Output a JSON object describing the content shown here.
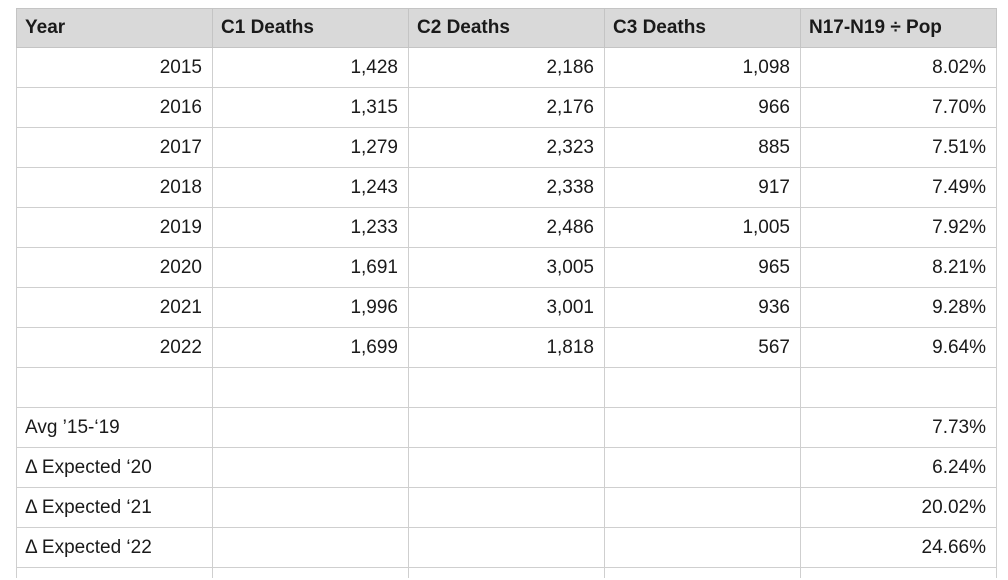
{
  "headers": [
    "Year",
    "C1 Deaths",
    "C2 Deaths",
    "C3 Deaths",
    "N17-N19 ÷ Pop"
  ],
  "rows": [
    {
      "year": "2015",
      "c1": "1,428",
      "c2": "2,186",
      "c3": "1,098",
      "ratio": "8.02%"
    },
    {
      "year": "2016",
      "c1": "1,315",
      "c2": "2,176",
      "c3": "966",
      "ratio": "7.70%"
    },
    {
      "year": "2017",
      "c1": "1,279",
      "c2": "2,323",
      "c3": "885",
      "ratio": "7.51%"
    },
    {
      "year": "2018",
      "c1": "1,243",
      "c2": "2,338",
      "c3": "917",
      "ratio": "7.49%"
    },
    {
      "year": "2019",
      "c1": "1,233",
      "c2": "2,486",
      "c3": "1,005",
      "ratio": "7.92%"
    },
    {
      "year": "2020",
      "c1": "1,691",
      "c2": "3,005",
      "c3": "965",
      "ratio": "8.21%"
    },
    {
      "year": "2021",
      "c1": "1,996",
      "c2": "3,001",
      "c3": "936",
      "ratio": "9.28%"
    },
    {
      "year": "2022",
      "c1": "1,699",
      "c2": "1,818",
      "c3": "567",
      "ratio": "9.64%"
    }
  ],
  "summary": [
    {
      "label": "Avg ’15-‘19",
      "ratio": "7.73%"
    },
    {
      "label": "Δ Expected ‘20",
      "ratio": "6.24%"
    },
    {
      "label": "Δ Expected ‘21",
      "ratio": "20.02%"
    },
    {
      "label": "Δ Expected ‘22",
      "ratio": "24.66%"
    }
  ]
}
